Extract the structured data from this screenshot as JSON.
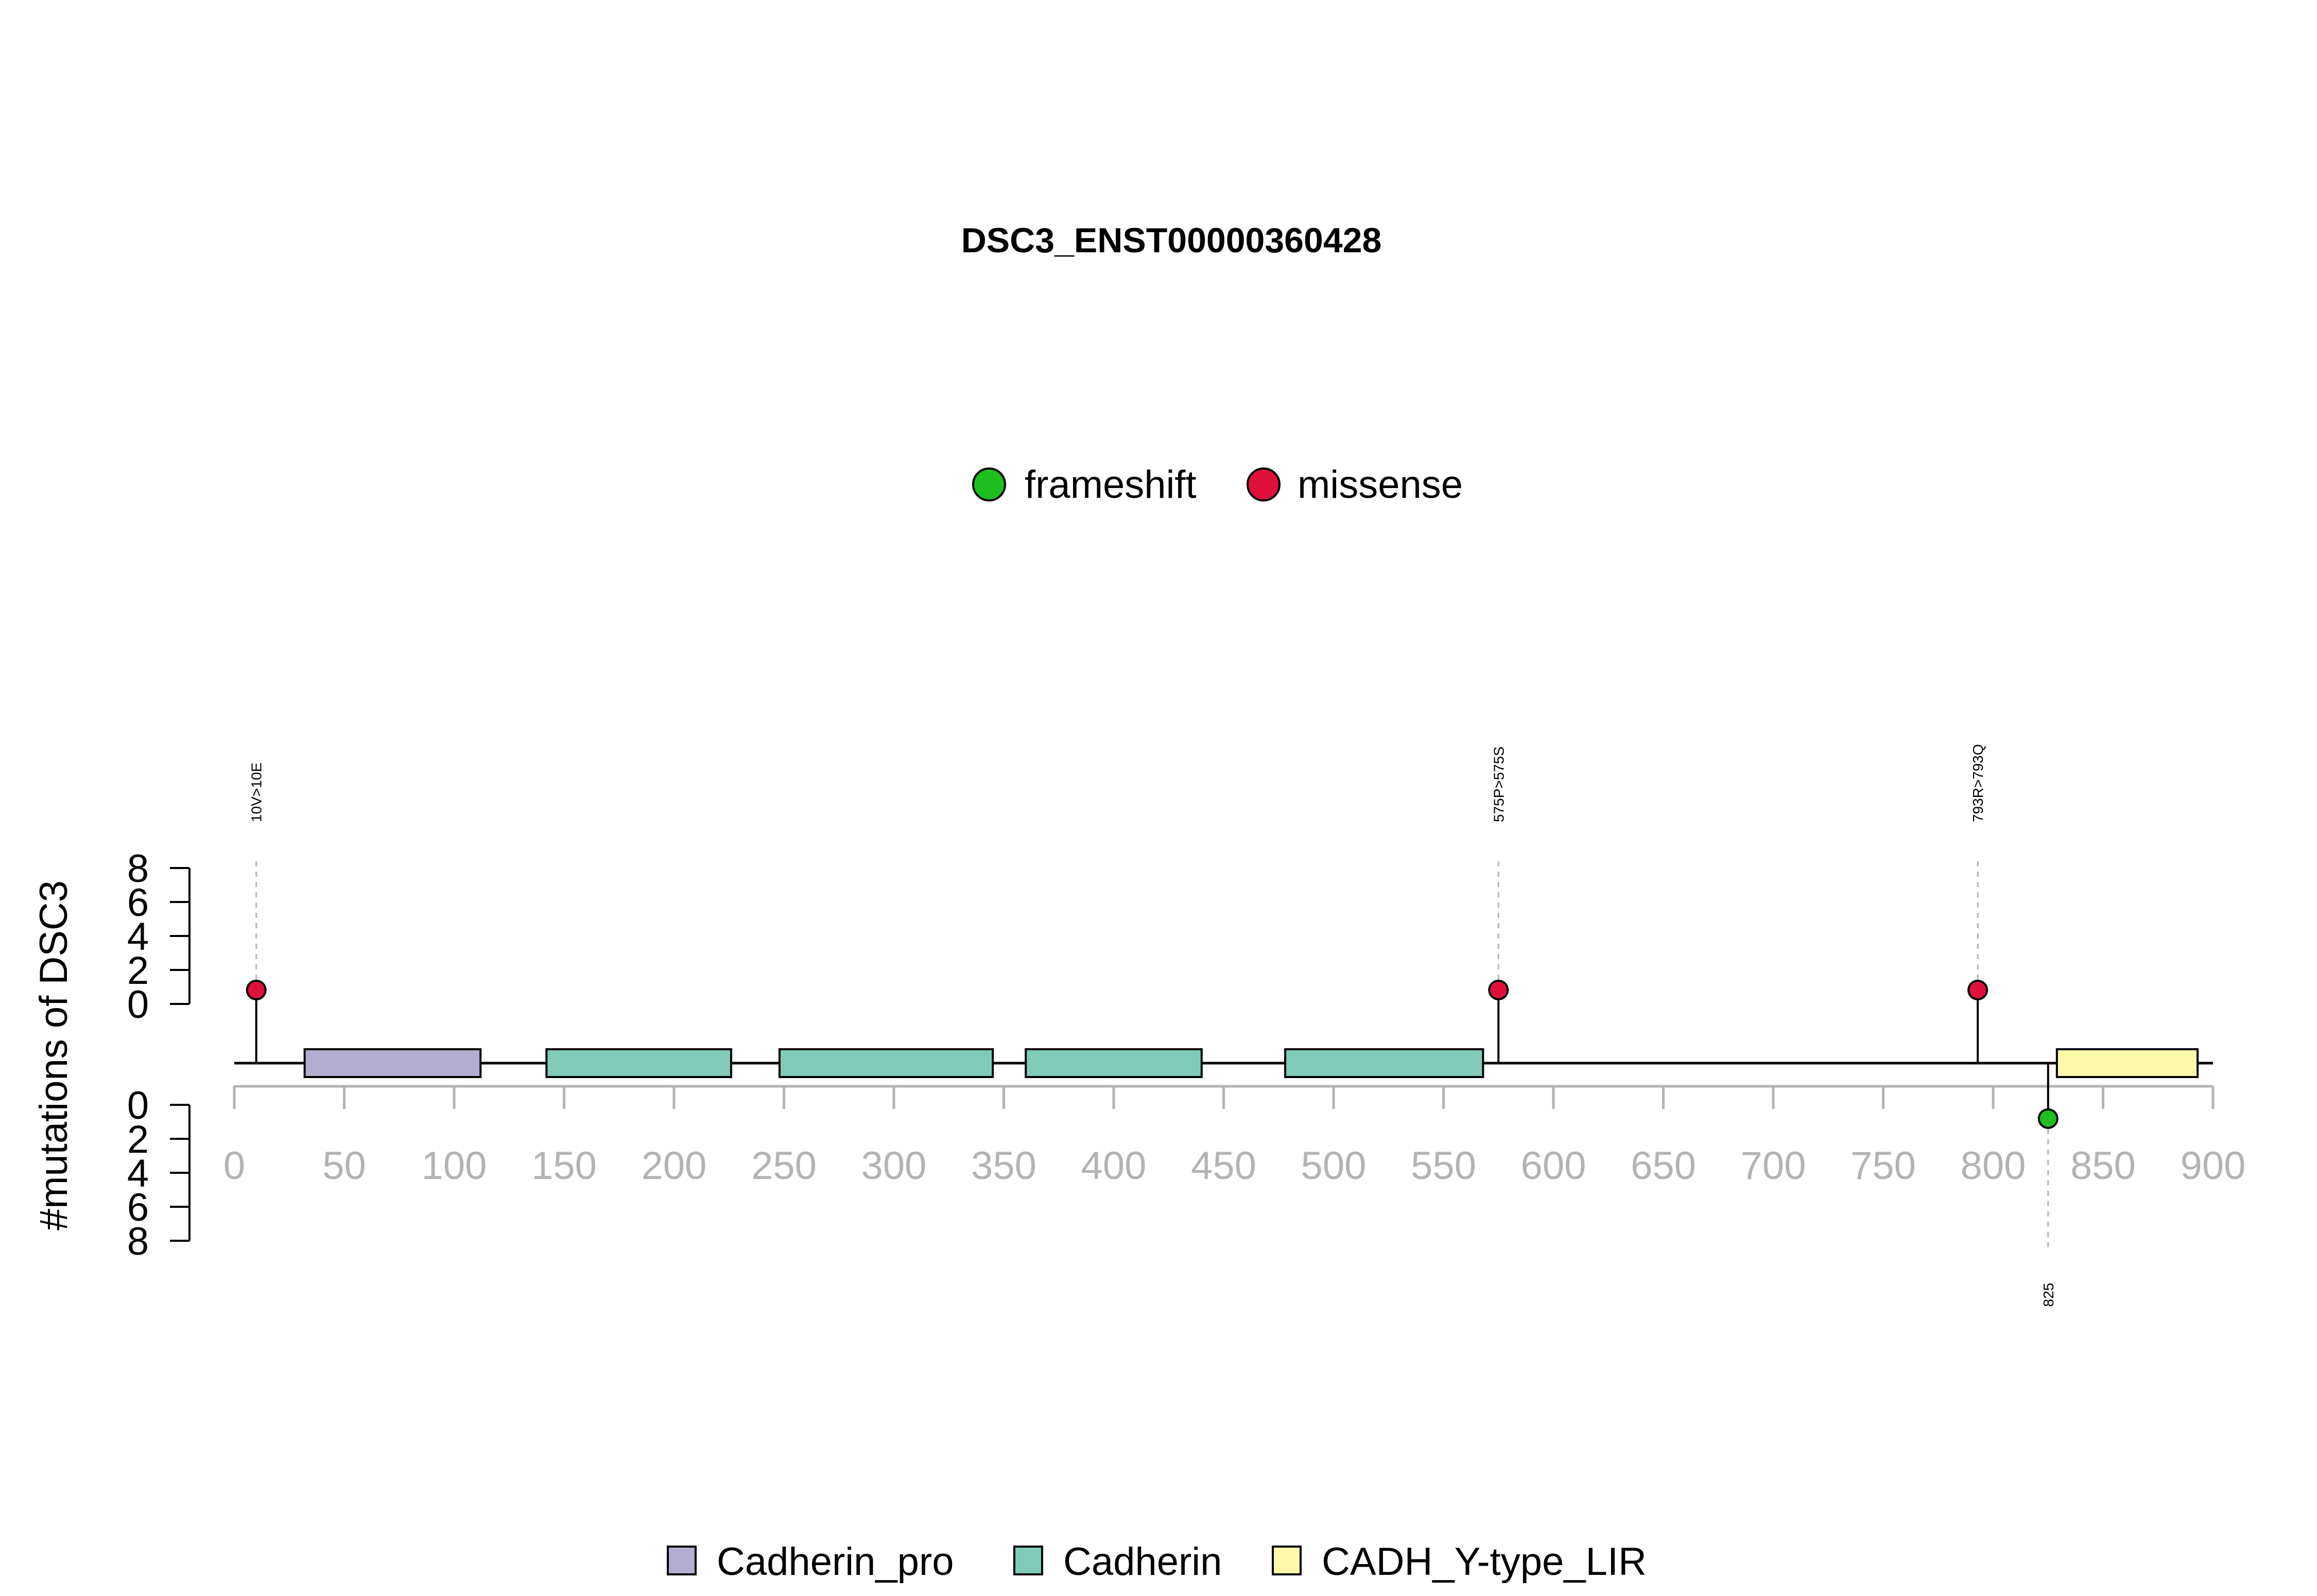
{
  "chart_data": {
    "type": "scatter",
    "subtype": "lollipop",
    "title": "DSC3_ENST00000360428",
    "ylabel": "#mutations of DSC3",
    "x_ticks": [
      0,
      50,
      100,
      150,
      200,
      250,
      300,
      350,
      400,
      450,
      500,
      550,
      600,
      650,
      700,
      750,
      800,
      850,
      900
    ],
    "xlim": [
      0,
      900
    ],
    "y_ticks_upper": [
      0,
      2,
      4,
      6,
      8
    ],
    "y_ticks_lower": [
      0,
      2,
      4,
      6,
      8
    ],
    "ylim": [
      0,
      8
    ],
    "mutation_legend": [
      {
        "name": "frameshift",
        "color": "#1fbf1f"
      },
      {
        "name": "missense",
        "color": "#e0103c"
      }
    ],
    "mutations": [
      {
        "pos": 10,
        "count": 1,
        "type": "missense",
        "label": "10V>10E",
        "track": "upper"
      },
      {
        "pos": 575,
        "count": 1,
        "type": "missense",
        "label": "575P>575S",
        "track": "upper"
      },
      {
        "pos": 793,
        "count": 1,
        "type": "missense",
        "label": "793R>793Q",
        "track": "upper"
      },
      {
        "pos": 825,
        "count": 1,
        "type": "frameshift",
        "label": "825",
        "track": "lower"
      }
    ],
    "domains": [
      {
        "name": "Cadherin_pro",
        "start": 32,
        "end": 112,
        "color": "#b3aed1"
      },
      {
        "name": "Cadherin",
        "start": 142,
        "end": 226,
        "color": "#7fcbb8"
      },
      {
        "name": "Cadherin",
        "start": 248,
        "end": 345,
        "color": "#7fcbb8"
      },
      {
        "name": "Cadherin",
        "start": 360,
        "end": 440,
        "color": "#7fcbb8"
      },
      {
        "name": "Cadherin",
        "start": 478,
        "end": 568,
        "color": "#7fcbb8"
      },
      {
        "name": "CADH_Y-type_LIR",
        "start": 829,
        "end": 893,
        "color": "#fdfbaa"
      }
    ],
    "domain_legend": [
      {
        "name": "Cadherin_pro",
        "color": "#b3aed1"
      },
      {
        "name": "Cadherin",
        "color": "#7fcbb8"
      },
      {
        "name": "CADH_Y-type_LIR",
        "color": "#fdfbaa"
      }
    ]
  }
}
